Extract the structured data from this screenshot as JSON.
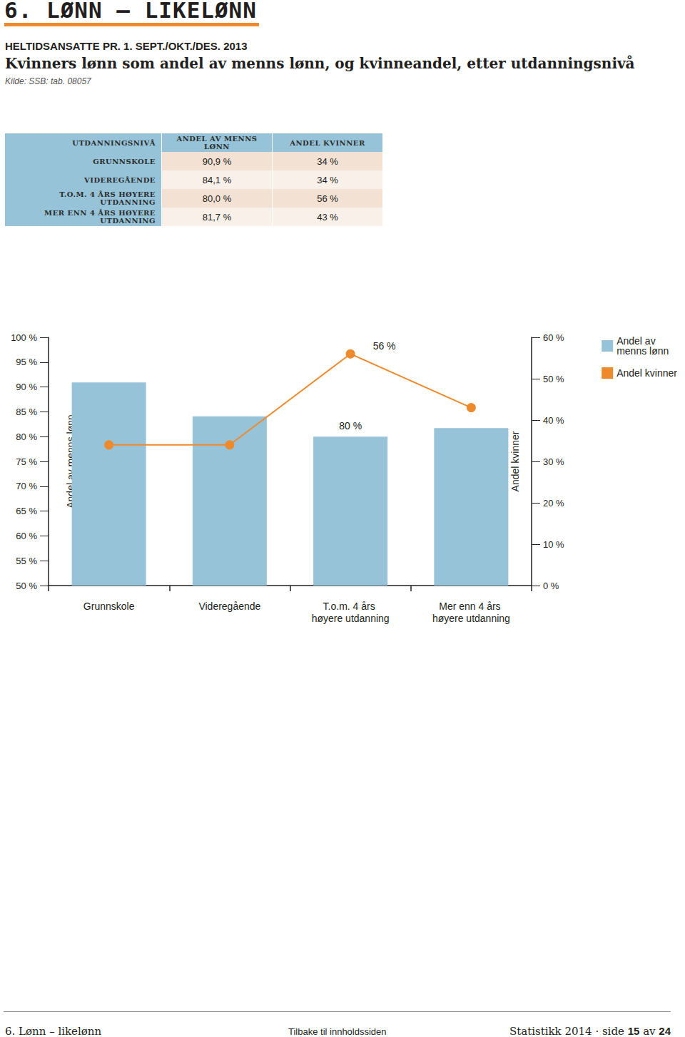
{
  "header": {
    "section": "6. LØNN – LIKELØNN",
    "subtitle": "HELTIDSANSATTE PR. 1. SEPT./OKT./DES. 2013",
    "title": "Kvinners lønn som andel av menns lønn, og kvinneandel, etter utdanningsnivå",
    "source": "Kilde: SSB: tab. 08057"
  },
  "table": {
    "header": [
      "UTDANNINGSNIVÅ",
      "ANDEL AV MENNS LØNN",
      "ANDEL KVINNER"
    ],
    "rows": [
      [
        "GRUNNSKOLE",
        "90,9 %",
        "34 %"
      ],
      [
        "VIDEREGÅENDE",
        "84,1 %",
        "34 %"
      ],
      [
        "T.O.M. 4 ÅRS HØYERE UTDANNING",
        "80,0 %",
        "56 %"
      ],
      [
        "MER ENN 4 ÅRS HØYERE UTDANNING",
        "81,7 %",
        "43 %"
      ]
    ]
  },
  "chart_data": {
    "type": "bar",
    "categories": [
      "Grunnskole",
      "Videregående",
      "T.o.m. 4 års høyere utdanning",
      "Mer enn 4 års høyere utdanning"
    ],
    "series": [
      {
        "name": "Andel av menns lønn",
        "type": "bar",
        "color": "#96c3d8",
        "values": [
          90.9,
          84.1,
          80.0,
          81.7
        ],
        "value_labels": [
          null,
          null,
          "80 %",
          null
        ]
      },
      {
        "name": "Andel kvinner",
        "type": "line",
        "axis": "y2",
        "color": "#ef8a2c",
        "marker": "circle",
        "values": [
          34,
          34,
          56,
          43
        ],
        "value_labels": [
          null,
          null,
          "56 %",
          null
        ]
      }
    ],
    "y_label": "Andel av menns lønn",
    "y2_label": "Andel kvinner",
    "ylim": [
      50,
      100
    ],
    "yticks": [
      {
        "value": 50,
        "label": "50 %"
      },
      {
        "value": 55,
        "label": "55 %"
      },
      {
        "value": 60,
        "label": "60 %"
      },
      {
        "value": 65,
        "label": "65 %"
      },
      {
        "value": 70,
        "label": "70 %"
      },
      {
        "value": 75,
        "label": "75 %"
      },
      {
        "value": 80,
        "label": "80 %"
      },
      {
        "value": 85,
        "label": "85 %"
      },
      {
        "value": 90,
        "label": "90 %"
      },
      {
        "value": 95,
        "label": "95 %"
      },
      {
        "value": 100,
        "label": "100 %"
      }
    ],
    "y2lim": [
      0,
      60
    ],
    "y2ticks": [
      {
        "value": 0,
        "label": "0 %"
      },
      {
        "value": 10,
        "label": "10 %"
      },
      {
        "value": 20,
        "label": "20 %"
      },
      {
        "value": 30,
        "label": "30 %"
      },
      {
        "value": 40,
        "label": "40 %"
      },
      {
        "value": 50,
        "label": "50 %"
      },
      {
        "value": 60,
        "label": "60 %"
      }
    ],
    "grid": false,
    "legend": "top-right",
    "data_labels": true
  },
  "footer": {
    "left": "6. Lønn – likelønn",
    "center": "Tilbake til innholdssiden",
    "publication": "Statistikk 2014",
    "separator": "·",
    "page_text": "side",
    "page": "15",
    "of_text": "av",
    "pages": "24"
  }
}
